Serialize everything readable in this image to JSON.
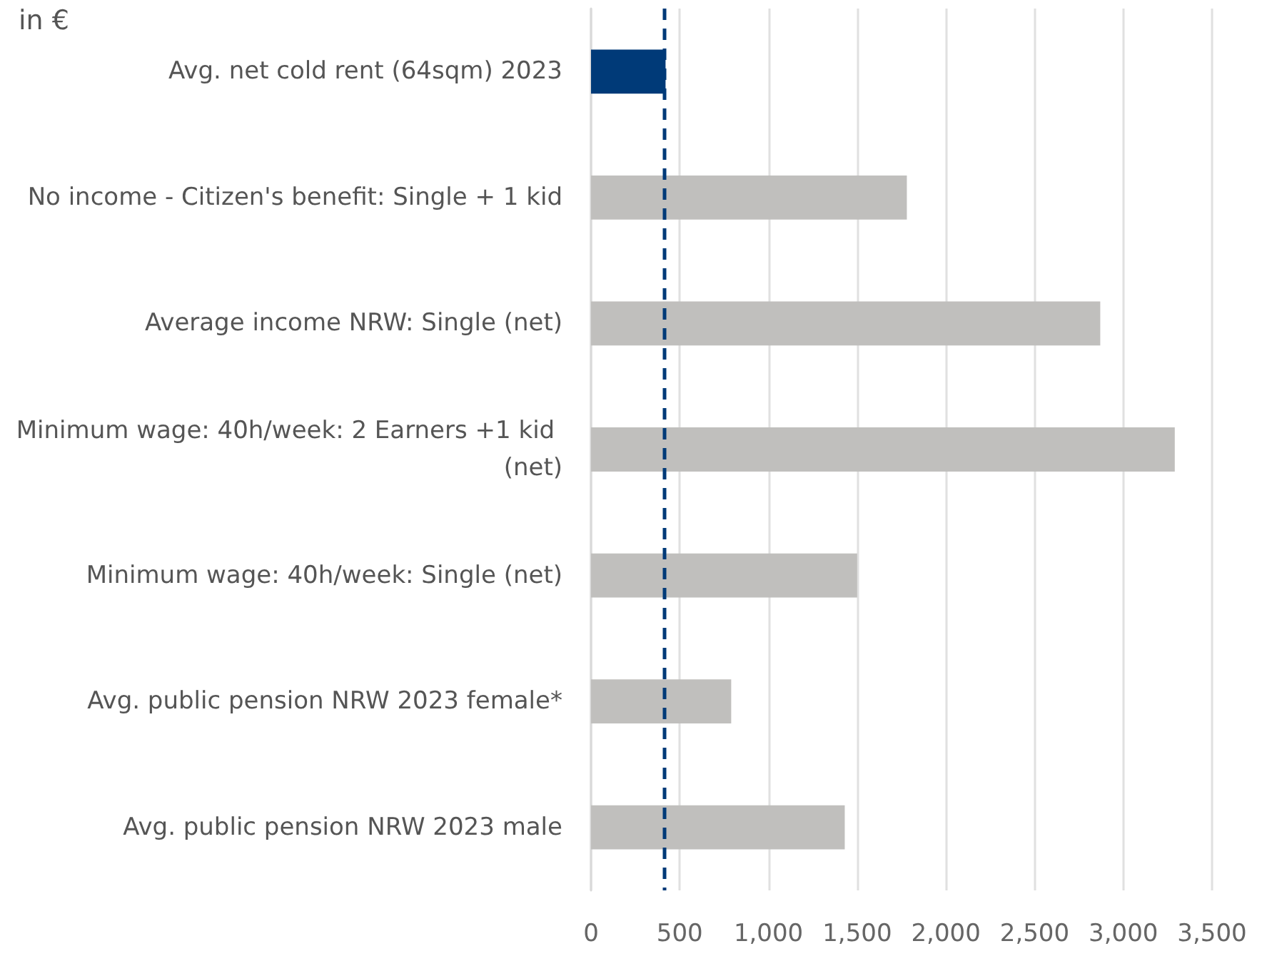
{
  "chart_data": {
    "type": "bar",
    "orientation": "horizontal",
    "title": "in €",
    "categories": [
      "Avg. net cold rent (64sqm) 2023",
      "No income - Citizen's benefit: Single + 1 kid",
      "Average income NRW: Single (net)",
      "Minimum wage: 40h/week: 2 Earners +1 kid (net)",
      "Minimum wage: 40h/week: Single (net)",
      "Avg. public pension NRW 2023 female*",
      "Avg. public pension NRW 2023 male"
    ],
    "values": [
      420,
      1780,
      2870,
      3290,
      1500,
      790,
      1430
    ],
    "colors": [
      "#003a78",
      "#c0bfbd",
      "#c0bfbd",
      "#c0bfbd",
      "#c0bfbd",
      "#c0bfbd",
      "#c0bfbd"
    ],
    "xlim": [
      0,
      3500
    ],
    "xticks": [
      0,
      500,
      {
        "value": 1000,
        "label": "1,000"
      },
      {
        "value": 1500,
        "label": "1,500"
      },
      {
        "value": 2000,
        "label": "2,000"
      },
      {
        "value": 2500,
        "label": "2,500"
      },
      {
        "value": 3000,
        "label": "3,000"
      },
      {
        "value": 3500,
        "label": "3,500"
      }
    ],
    "grid": "x",
    "ref_lines": [
      {
        "axis": "x",
        "value": 410,
        "color": "#003a78",
        "line_style": "dashed"
      }
    ]
  }
}
